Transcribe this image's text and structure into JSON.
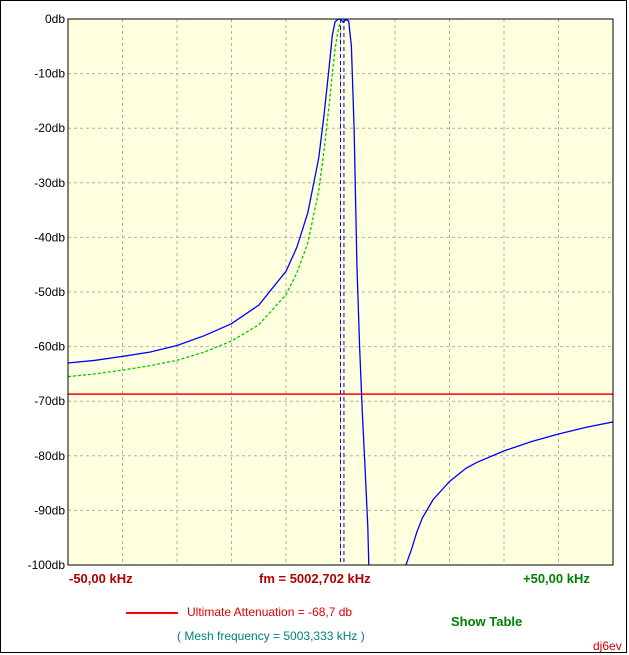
{
  "chart_data": {
    "type": "line",
    "x_unit": "kHz offset from fm",
    "xlim": [
      -50,
      50
    ],
    "ylim": [
      -100,
      0
    ],
    "yticks": [
      "0db",
      "-10db",
      "-20db",
      "-30db",
      "-40db",
      "-50db",
      "-60db",
      "-70db",
      "-80db",
      "-90db",
      "-100db"
    ],
    "grid": true,
    "x_tick_labels": {
      "min": "-50,00 kHz",
      "center": "fm = 5002,702 kHz",
      "max": "+50,00 kHz"
    },
    "series": [
      {
        "style": "solid",
        "color": "#0000ff",
        "x": [
          -50,
          -45,
          -40,
          -35,
          -30,
          -25,
          -20,
          -15,
          -10,
          -8,
          -6,
          -4,
          -3,
          -2,
          -1.5,
          -1,
          -0.5,
          0,
          0.5,
          1,
          1.5,
          2,
          2.5,
          3,
          3.5,
          4,
          4.5,
          5,
          5.2
        ],
        "y": [
          -63,
          -62.5,
          -61.8,
          -61,
          -59.8,
          -58,
          -55.8,
          -52.4,
          -46.2,
          -41.8,
          -35.5,
          -25.5,
          -17.5,
          -8,
          -3,
          -0.5,
          -0.1,
          0,
          -0.6,
          -0.1,
          -0.4,
          -5,
          -20,
          -45,
          -60,
          -72,
          -82,
          -93,
          -100
        ]
      },
      {
        "style": "solid",
        "color": "#0000ff",
        "x": [
          12,
          13,
          14,
          15,
          17,
          20,
          23,
          25,
          30,
          35,
          40,
          45,
          50
        ],
        "y": [
          -100,
          -97.2,
          -94,
          -91.4,
          -88,
          -84.7,
          -82.3,
          -81.2,
          -79.1,
          -77.4,
          -76,
          -74.8,
          -73.8
        ]
      },
      {
        "style": "dashed",
        "color": "#00cc00",
        "x": [
          -50,
          -45,
          -40,
          -35,
          -30,
          -25,
          -20,
          -15,
          -10,
          -8,
          -6,
          -4,
          -3,
          -2,
          -1.5,
          -1,
          -0.6,
          -0.3,
          0
        ],
        "y": [
          -65.5,
          -65,
          -64.3,
          -63.5,
          -62.5,
          -61,
          -59,
          -56,
          -50.5,
          -46.5,
          -41,
          -31.5,
          -24,
          -15,
          -10,
          -5.5,
          -3,
          -1.5,
          -0.5
        ]
      }
    ],
    "markers": [
      {
        "type": "hline",
        "y": -68.7,
        "color": "#ff0000",
        "style": "solid"
      },
      {
        "type": "vline",
        "x": 0,
        "color": "#0000ff",
        "style": "dashed"
      },
      {
        "type": "vline",
        "x": 0.63,
        "color": "#0000ff",
        "style": "dashed"
      }
    ]
  },
  "legend": {
    "ultimate_attenuation": "Ultimate Attenuation =   -68,7 db",
    "mesh_frequency": "( Mesh frequency = 5003,333 kHz )"
  },
  "show_table_label": "Show Table",
  "signature": "dj6ev",
  "colors": {
    "plot_background": "#ffffe0",
    "grid": "#b0b0b0"
  }
}
